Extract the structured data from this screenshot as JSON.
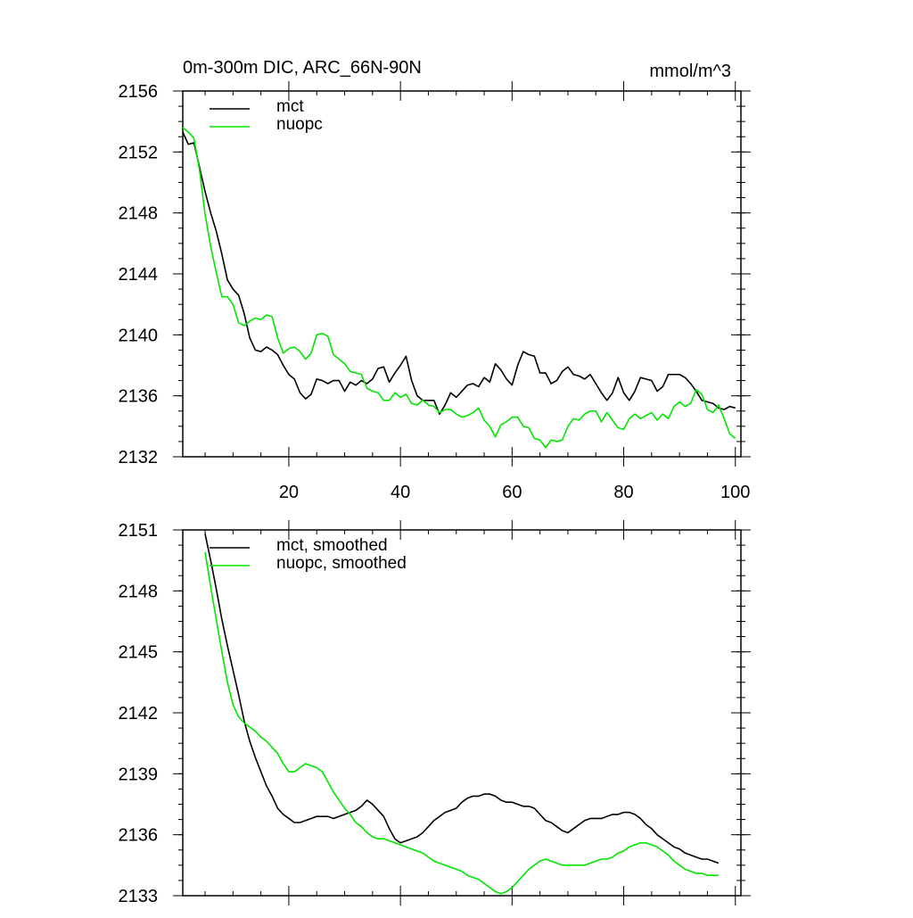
{
  "chart_data": [
    {
      "type": "line",
      "title": "0m-300m DIC, ARC_66N-90N",
      "units": "mmol/m^3",
      "xlim": [
        1,
        101
      ],
      "ylim": [
        2132,
        2156
      ],
      "x_ticks": [
        20,
        40,
        60,
        80,
        100
      ],
      "y_ticks": [
        2132,
        2136,
        2140,
        2144,
        2148,
        2152,
        2156
      ],
      "legend_position": "top-left",
      "x": [
        1,
        2,
        3,
        4,
        5,
        6,
        7,
        8,
        9,
        10,
        11,
        12,
        13,
        14,
        15,
        16,
        17,
        18,
        19,
        20,
        21,
        22,
        23,
        24,
        25,
        26,
        27,
        28,
        29,
        30,
        31,
        32,
        33,
        34,
        35,
        36,
        37,
        38,
        39,
        40,
        41,
        42,
        43,
        44,
        45,
        46,
        47,
        48,
        49,
        50,
        51,
        52,
        53,
        54,
        55,
        56,
        57,
        58,
        59,
        60,
        61,
        62,
        63,
        64,
        65,
        66,
        67,
        68,
        69,
        70,
        71,
        72,
        73,
        74,
        75,
        76,
        77,
        78,
        79,
        80,
        81,
        82,
        83,
        84,
        85,
        86,
        87,
        88,
        89,
        90,
        91,
        92,
        93,
        94,
        95,
        96,
        97,
        98,
        99,
        100
      ],
      "series": [
        {
          "name": "mct",
          "color": "#000000",
          "values": [
            2153.3,
            2152.5,
            2152.6,
            2151.0,
            2149.4,
            2148.0,
            2146.8,
            2145.3,
            2143.6,
            2143.0,
            2142.6,
            2141.4,
            2139.8,
            2139.0,
            2138.9,
            2139.2,
            2139.0,
            2138.7,
            2138.0,
            2137.4,
            2137.1,
            2136.2,
            2135.8,
            2136.1,
            2137.1,
            2137.0,
            2136.8,
            2137.0,
            2137.0,
            2136.3,
            2136.9,
            2136.7,
            2137.0,
            2136.8,
            2137.1,
            2137.8,
            2137.9,
            2136.9,
            2137.5,
            2138.0,
            2138.6,
            2137.0,
            2136.0,
            2135.7,
            2135.7,
            2135.7,
            2134.8,
            2135.4,
            2136.2,
            2135.9,
            2136.3,
            2136.7,
            2136.8,
            2136.6,
            2137.2,
            2136.9,
            2138.1,
            2137.7,
            2137.1,
            2136.7,
            2138.0,
            2138.9,
            2138.7,
            2138.6,
            2137.5,
            2137.5,
            2136.8,
            2137.0,
            2137.6,
            2137.9,
            2137.4,
            2137.3,
            2137.1,
            2137.4,
            2136.8,
            2136.2,
            2135.7,
            2136.2,
            2137.2,
            2136.2,
            2135.7,
            2136.3,
            2137.2,
            2137.1,
            2137.0,
            2136.3,
            2136.6,
            2137.4,
            2137.4,
            2137.4,
            2137.2,
            2136.8,
            2136.3,
            2135.7,
            2135.6,
            2135.5,
            2135.2,
            2135.1,
            2135.3,
            2135.2
          ]
        },
        {
          "name": "nuopc",
          "color": "#00e600",
          "values": [
            2153.6,
            2153.3,
            2152.9,
            2150.8,
            2147.9,
            2145.8,
            2144.1,
            2142.5,
            2142.5,
            2142.0,
            2140.8,
            2140.6,
            2140.9,
            2141.1,
            2141.0,
            2141.3,
            2141.2,
            2139.8,
            2138.8,
            2139.1,
            2139.2,
            2138.9,
            2138.4,
            2138.8,
            2140.0,
            2140.1,
            2139.9,
            2138.7,
            2138.4,
            2138.1,
            2137.6,
            2137.5,
            2137.4,
            2136.5,
            2136.3,
            2136.2,
            2135.7,
            2135.7,
            2136.2,
            2135.9,
            2136.1,
            2135.5,
            2135.4,
            2135.7,
            2135.4,
            2135.3,
            2134.9,
            2135.1,
            2135.1,
            2134.8,
            2134.6,
            2134.7,
            2134.9,
            2135.2,
            2134.4,
            2134.0,
            2133.3,
            2134.1,
            2134.3,
            2134.6,
            2134.6,
            2134.0,
            2133.9,
            2133.2,
            2133.1,
            2132.6,
            2133.1,
            2133.0,
            2133.1,
            2134.0,
            2134.5,
            2134.4,
            2134.8,
            2135.0,
            2135.0,
            2134.3,
            2134.9,
            2134.4,
            2133.9,
            2133.8,
            2134.5,
            2134.8,
            2134.5,
            2134.7,
            2134.9,
            2134.4,
            2134.8,
            2134.5,
            2135.3,
            2135.6,
            2135.3,
            2135.5,
            2136.4,
            2136.1,
            2135.1,
            2134.9,
            2135.4,
            2134.5,
            2133.5,
            2133.2
          ]
        }
      ]
    },
    {
      "type": "line",
      "xlim": [
        1,
        101
      ],
      "ylim": [
        2133,
        2151
      ],
      "x_ticks": [
        20,
        40,
        60,
        80,
        100
      ],
      "y_ticks": [
        2133,
        2136,
        2139,
        2142,
        2145,
        2148,
        2151
      ],
      "legend_position": "top-left",
      "x": [
        5,
        6,
        7,
        8,
        9,
        10,
        11,
        12,
        13,
        14,
        15,
        16,
        17,
        18,
        19,
        20,
        21,
        22,
        23,
        24,
        25,
        26,
        27,
        28,
        29,
        30,
        31,
        32,
        33,
        34,
        35,
        36,
        37,
        38,
        39,
        40,
        41,
        42,
        43,
        44,
        45,
        46,
        47,
        48,
        49,
        50,
        51,
        52,
        53,
        54,
        55,
        56,
        57,
        58,
        59,
        60,
        61,
        62,
        63,
        64,
        65,
        66,
        67,
        68,
        69,
        70,
        71,
        72,
        73,
        74,
        75,
        76,
        77,
        78,
        79,
        80,
        81,
        82,
        83,
        84,
        85,
        86,
        87,
        88,
        89,
        90,
        91,
        92,
        93,
        94,
        95,
        96,
        97
      ],
      "series": [
        {
          "name": "mct, smoothed",
          "color": "#000000",
          "values": [
            2150.8,
            2149.5,
            2148.1,
            2146.6,
            2145.3,
            2144.1,
            2142.9,
            2141.6,
            2140.6,
            2139.8,
            2139.1,
            2138.4,
            2137.9,
            2137.3,
            2137.0,
            2136.8,
            2136.6,
            2136.6,
            2136.7,
            2136.8,
            2136.9,
            2136.9,
            2136.9,
            2136.8,
            2136.9,
            2137.0,
            2137.1,
            2137.2,
            2137.4,
            2137.7,
            2137.5,
            2137.2,
            2136.9,
            2136.3,
            2135.8,
            2135.6,
            2135.7,
            2135.8,
            2135.9,
            2136.1,
            2136.4,
            2136.7,
            2136.9,
            2137.1,
            2137.2,
            2137.3,
            2137.6,
            2137.8,
            2137.9,
            2137.9,
            2138.0,
            2138.0,
            2137.9,
            2137.7,
            2137.6,
            2137.6,
            2137.5,
            2137.4,
            2137.4,
            2137.3,
            2137.0,
            2136.7,
            2136.6,
            2136.4,
            2136.2,
            2136.1,
            2136.3,
            2136.5,
            2136.7,
            2136.8,
            2136.8,
            2136.8,
            2136.9,
            2137.0,
            2137.0,
            2137.1,
            2137.1,
            2137.0,
            2136.8,
            2136.5,
            2136.3,
            2136.0,
            2135.8,
            2135.6,
            2135.4,
            2135.3,
            2135.1,
            2135.0,
            2134.9,
            2134.8,
            2134.8,
            2134.7,
            2134.6
          ]
        },
        {
          "name": "nuopc, smoothed",
          "color": "#00e600",
          "values": [
            2149.9,
            2148.2,
            2146.6,
            2145.0,
            2143.5,
            2142.4,
            2141.8,
            2141.5,
            2141.3,
            2141.1,
            2140.8,
            2140.6,
            2140.3,
            2140.0,
            2139.5,
            2139.1,
            2139.1,
            2139.3,
            2139.5,
            2139.4,
            2139.3,
            2139.1,
            2138.6,
            2138.1,
            2137.7,
            2137.3,
            2137.0,
            2136.6,
            2136.4,
            2136.1,
            2135.9,
            2135.8,
            2135.8,
            2135.7,
            2135.6,
            2135.5,
            2135.4,
            2135.3,
            2135.2,
            2135.1,
            2134.9,
            2134.7,
            2134.6,
            2134.5,
            2134.4,
            2134.3,
            2134.2,
            2134.0,
            2133.9,
            2133.8,
            2133.6,
            2133.4,
            2133.2,
            2133.1,
            2133.2,
            2133.4,
            2133.7,
            2134.0,
            2134.3,
            2134.5,
            2134.7,
            2134.8,
            2134.7,
            2134.6,
            2134.5,
            2134.5,
            2134.5,
            2134.5,
            2134.5,
            2134.6,
            2134.7,
            2134.8,
            2134.8,
            2134.9,
            2135.1,
            2135.2,
            2135.4,
            2135.5,
            2135.6,
            2135.6,
            2135.5,
            2135.4,
            2135.2,
            2135.0,
            2134.7,
            2134.5,
            2134.3,
            2134.2,
            2134.1,
            2134.1,
            2134.0,
            2134.0,
            2134.0
          ]
        }
      ]
    }
  ]
}
